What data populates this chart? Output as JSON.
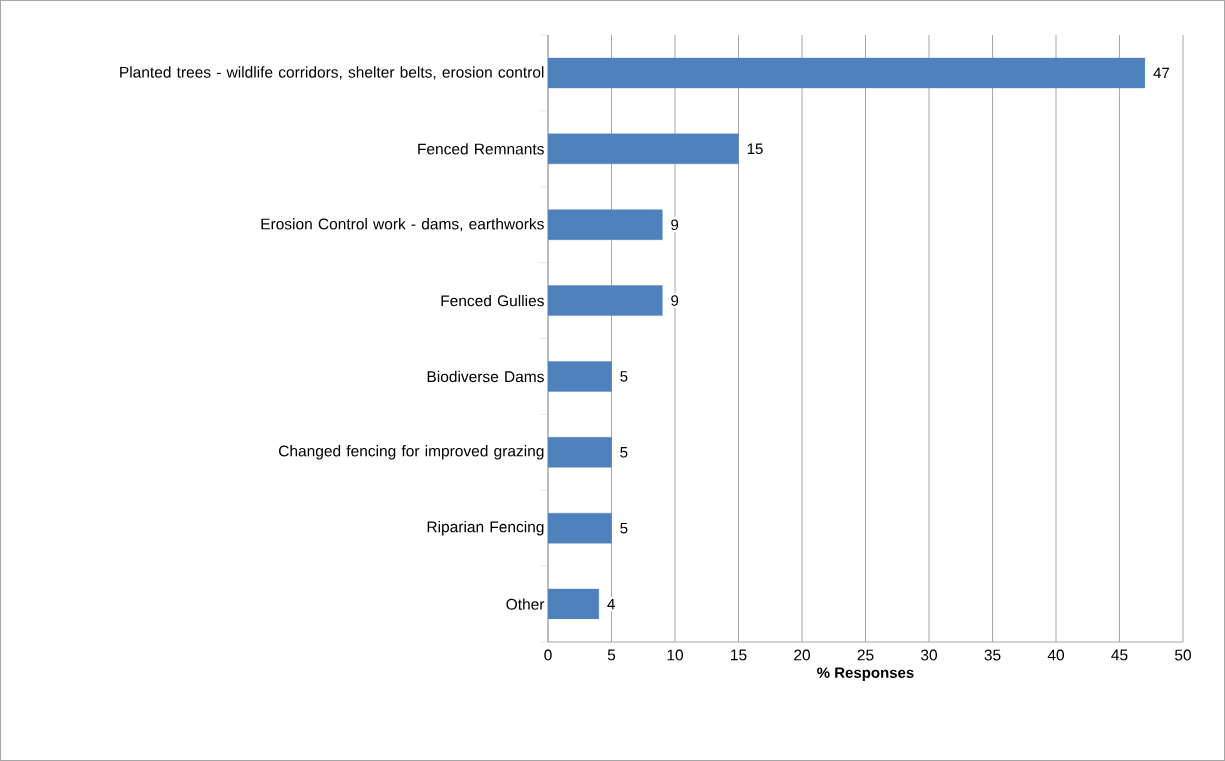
{
  "chart_data": {
    "type": "bar",
    "orientation": "horizontal",
    "xlabel": "% Responses",
    "categories": [
      "Planted trees - wildlife corridors, shelter belts, erosion control",
      "Fenced Remnants",
      "Erosion Control work - dams, earthworks",
      "Fenced Gullies",
      "Biodiverse Dams",
      "Changed fencing for improved grazing",
      "Riparian Fencing",
      "Other"
    ],
    "values": [
      47,
      15,
      9,
      9,
      5,
      5,
      5,
      4
    ],
    "color": "#4f81bd",
    "data_labels": true,
    "grid": "x",
    "xlim": [
      0,
      50
    ],
    "xticks": [
      0,
      5,
      10,
      15,
      20,
      25,
      30,
      35,
      40,
      45,
      50
    ]
  }
}
